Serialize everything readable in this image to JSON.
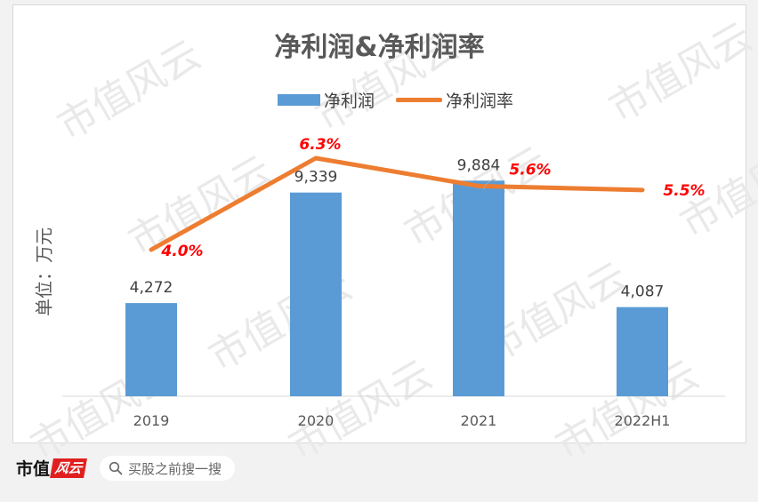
{
  "chart_data": {
    "type": "bar+line",
    "title": "净利润&净利润率",
    "ylabel": "单位：万元",
    "categories": [
      "2019",
      "2020",
      "2021",
      "2022H1"
    ],
    "series": [
      {
        "name": "净利润",
        "type": "bar",
        "values": [
          4272,
          9339,
          9884,
          4087
        ],
        "labels": [
          "4,272",
          "9,339",
          "9,884",
          "4,087"
        ],
        "color": "#5b9bd5"
      },
      {
        "name": "净利润率",
        "type": "line",
        "values": [
          4.0,
          6.3,
          5.6,
          5.5
        ],
        "labels": [
          "4.0%",
          "6.3%",
          "5.6%",
          "5.5%"
        ],
        "color": "#ed7d31",
        "label_color": "#ff0000"
      }
    ],
    "bar_ylim": [
      0,
      12000
    ],
    "line_ylim": [
      0,
      7
    ],
    "legend": "top-center",
    "grid": false
  },
  "watermark": "市值风云",
  "footer": {
    "brand_text": "市值",
    "brand_mark": "风云",
    "search_text": "买股之前搜一搜"
  }
}
